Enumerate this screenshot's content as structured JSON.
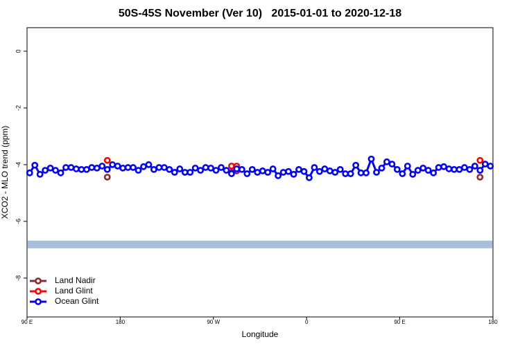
{
  "chart_data": {
    "type": "line",
    "title": "50S-45S November (Ver 10)   2015-01-01 to 2020-12-18",
    "x_label": "Longitude",
    "y_label": "XCO2 - MLO trend (ppm)",
    "xlim": [
      90,
      540
    ],
    "xticks": [
      {
        "value": 90,
        "label": "90 E"
      },
      {
        "value": 180,
        "label": "180"
      },
      {
        "value": 270,
        "label": "90 W"
      },
      {
        "value": 360,
        "label": "0"
      },
      {
        "value": 450,
        "label": "90 E"
      },
      {
        "value": 540,
        "label": "180"
      }
    ],
    "ylim": [
      -9.37,
      0.83
    ],
    "yticks": [
      0,
      -2,
      -4,
      -6,
      -8
    ],
    "legend": "bottom-left",
    "band": {
      "ymin": -6.95,
      "ymax": -6.68,
      "color": "#a8bfdc"
    },
    "series": [
      {
        "name": "Land Nadir",
        "color": "#8b2a2a",
        "x": [
          167.5,
          287.5,
          292.5,
          527.5
        ],
        "values": [
          -4.44,
          -4.27,
          -4.22,
          -4.44
        ]
      },
      {
        "name": "Land Glint",
        "color": "#ff0000",
        "x": [
          167.5,
          287.5,
          292.5,
          527.5
        ],
        "values": [
          -3.85,
          -4.05,
          -4.05,
          -3.85
        ]
      },
      {
        "name": "Ocean Glint",
        "color": "#0000ff",
        "x": [
          92.5,
          97.5,
          102.5,
          107.5,
          112.5,
          117.5,
          122.5,
          127.5,
          132.5,
          137.5,
          142.5,
          147.5,
          152.5,
          157.5,
          162.5,
          167.5,
          172.5,
          177.5,
          182.5,
          187.5,
          192.5,
          197.5,
          202.5,
          207.5,
          212.5,
          217.5,
          222.5,
          227.5,
          232.5,
          237.5,
          242.5,
          247.5,
          252.5,
          257.5,
          262.5,
          267.5,
          272.5,
          277.5,
          282.5,
          287.5,
          292.5,
          297.5,
          302.5,
          307.5,
          312.5,
          317.5,
          322.5,
          327.5,
          332.5,
          337.5,
          342.5,
          347.5,
          352.5,
          357.5,
          362.5,
          367.5,
          372.5,
          377.5,
          382.5,
          387.5,
          392.5,
          397.5,
          402.5,
          407.5,
          412.5,
          417.5,
          422.5,
          427.5,
          432.5,
          437.5,
          442.5,
          447.5,
          452.5,
          457.5,
          462.5,
          467.5,
          472.5,
          477.5,
          482.5,
          487.5,
          492.5,
          497.5,
          502.5,
          507.5,
          512.5,
          517.5,
          522.5,
          527.5,
          532.5,
          537.5
        ],
        "values": [
          -4.29,
          -4.02,
          -4.34,
          -4.2,
          -4.12,
          -4.2,
          -4.29,
          -4.1,
          -4.1,
          -4.15,
          -4.17,
          -4.17,
          -4.1,
          -4.12,
          -4.05,
          -4.17,
          -4.0,
          -4.05,
          -4.12,
          -4.1,
          -4.1,
          -4.2,
          -4.07,
          -4.0,
          -4.17,
          -4.1,
          -4.1,
          -4.17,
          -4.27,
          -4.15,
          -4.27,
          -4.27,
          -4.12,
          -4.2,
          -4.1,
          -4.12,
          -4.2,
          -4.1,
          -4.2,
          -4.32,
          -4.15,
          -4.17,
          -4.32,
          -4.17,
          -4.27,
          -4.22,
          -4.27,
          -4.15,
          -4.39,
          -4.27,
          -4.24,
          -4.34,
          -4.17,
          -4.24,
          -4.46,
          -4.1,
          -4.24,
          -4.15,
          -4.22,
          -4.27,
          -4.17,
          -4.32,
          -4.32,
          -4.02,
          -4.29,
          -4.29,
          -3.8,
          -4.27,
          -4.12,
          -3.9,
          -3.98,
          -4.17,
          -4.32,
          -4.05,
          -4.34,
          -4.2,
          -4.12,
          -4.2,
          -4.29,
          -4.1,
          -4.07,
          -4.15,
          -4.17,
          -4.17,
          -4.1,
          -4.17,
          -4.05,
          -4.2,
          -3.98,
          -4.05
        ]
      }
    ]
  }
}
